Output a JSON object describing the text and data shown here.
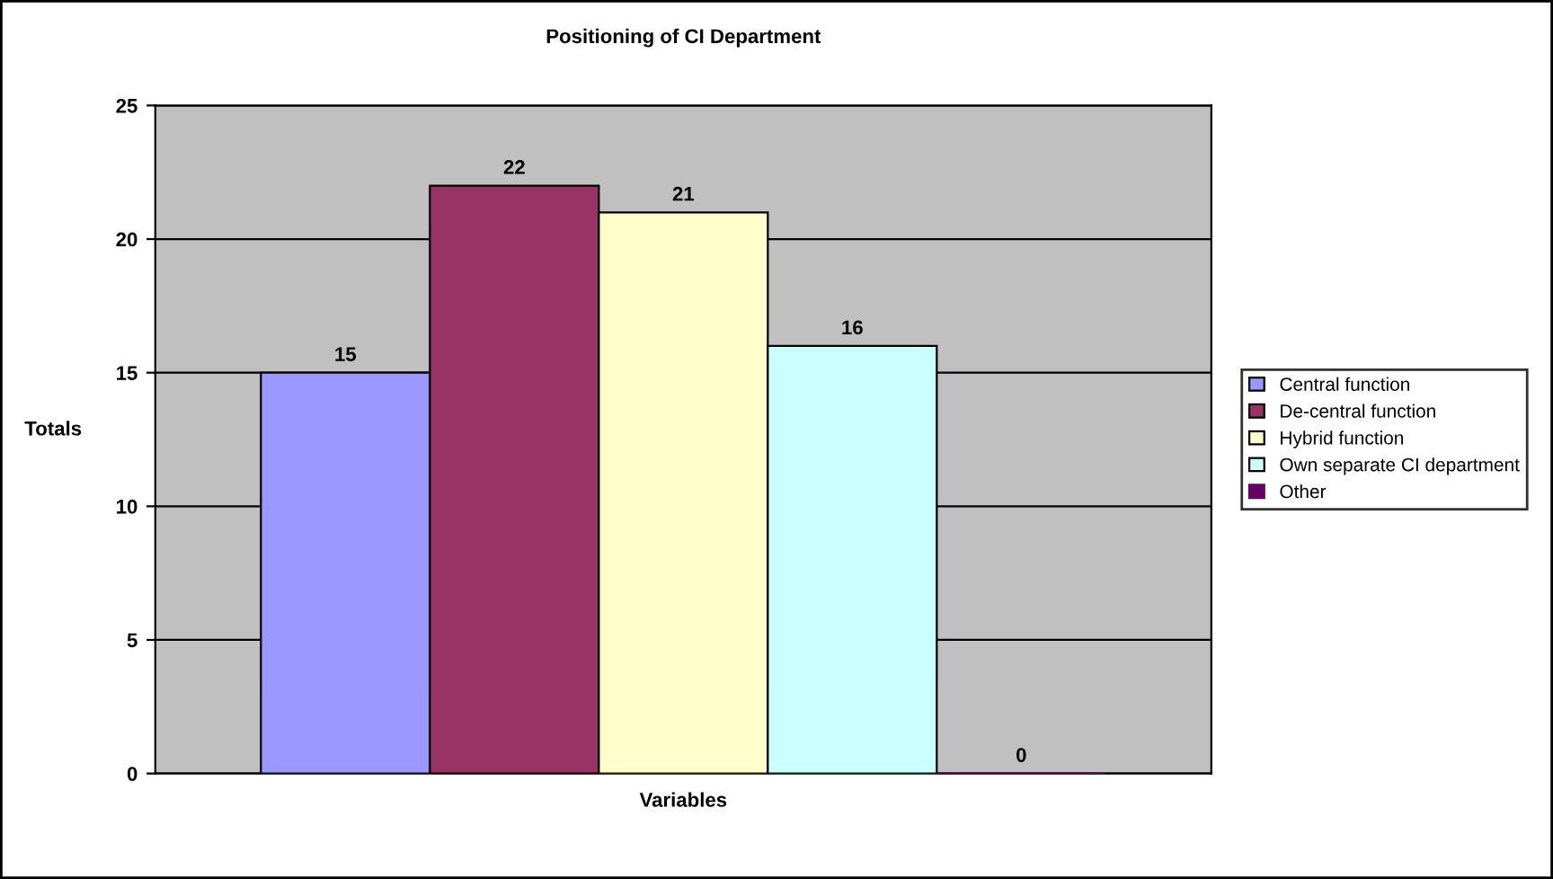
{
  "chart_data": {
    "type": "bar",
    "title": "Positioning of CI Department",
    "xlabel": "Variables",
    "ylabel": "Totals",
    "categories": [
      null
    ],
    "series": [
      {
        "name": "Central function",
        "color": "#9999ff",
        "values": [
          15
        ]
      },
      {
        "name": "De-central function",
        "color": "#993366",
        "values": [
          22
        ]
      },
      {
        "name": "Hybrid function",
        "color": "#ffffcc",
        "values": [
          21
        ]
      },
      {
        "name": "Own separate CI department",
        "color": "#ccffff",
        "values": [
          16
        ]
      },
      {
        "name": "Other",
        "color": "#660066",
        "values": [
          0
        ]
      }
    ],
    "ylim": [
      0,
      25
    ],
    "yticks": [
      0,
      5,
      10,
      15,
      20,
      25
    ],
    "grid": "y",
    "legend": "right",
    "data_labels": true
  }
}
